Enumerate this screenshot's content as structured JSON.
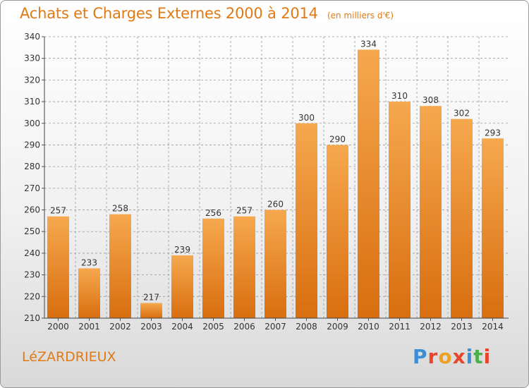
{
  "header": {
    "title": "Achats et Charges Externes 2000 à 2014",
    "subtitle": "(en milliers d'€)"
  },
  "footer": {
    "commune": "LéZARDRIEUX",
    "logo_letters": [
      "P",
      "r",
      "o",
      "x",
      "i",
      "t",
      "i"
    ],
    "logo_colors": [
      "#3b8fd6",
      "#e8452b",
      "#f0a020",
      "#e8452b",
      "#3b8fd6",
      "#49b04a",
      "#e8452b"
    ]
  },
  "colors": {
    "accent": "#e07a14",
    "bar_top": "#f6a84e",
    "bar_bottom": "#d86e0f",
    "grid": "#999999",
    "text": "#333333"
  },
  "chart_data": {
    "type": "bar",
    "categories": [
      "2000",
      "2001",
      "2002",
      "2003",
      "2004",
      "2005",
      "2006",
      "2007",
      "2008",
      "2009",
      "2010",
      "2011",
      "2012",
      "2013",
      "2014"
    ],
    "values": [
      257,
      233,
      258,
      217,
      239,
      256,
      257,
      260,
      300,
      290,
      334,
      310,
      308,
      302,
      293
    ],
    "labels": [
      "257",
      "233",
      "258",
      "217",
      "239",
      "256",
      "257",
      "260",
      "300",
      "290",
      "334",
      "310",
      "308",
      "302",
      "293"
    ],
    "yticks": [
      "210",
      "220",
      "230",
      "240",
      "250",
      "260",
      "270",
      "280",
      "290",
      "300",
      "310",
      "320",
      "330",
      "340"
    ],
    "ylim": [
      210,
      340
    ],
    "grid": true,
    "title": "Achats et Charges Externes 2000 à 2014",
    "xlabel": "",
    "ylabel": ""
  }
}
